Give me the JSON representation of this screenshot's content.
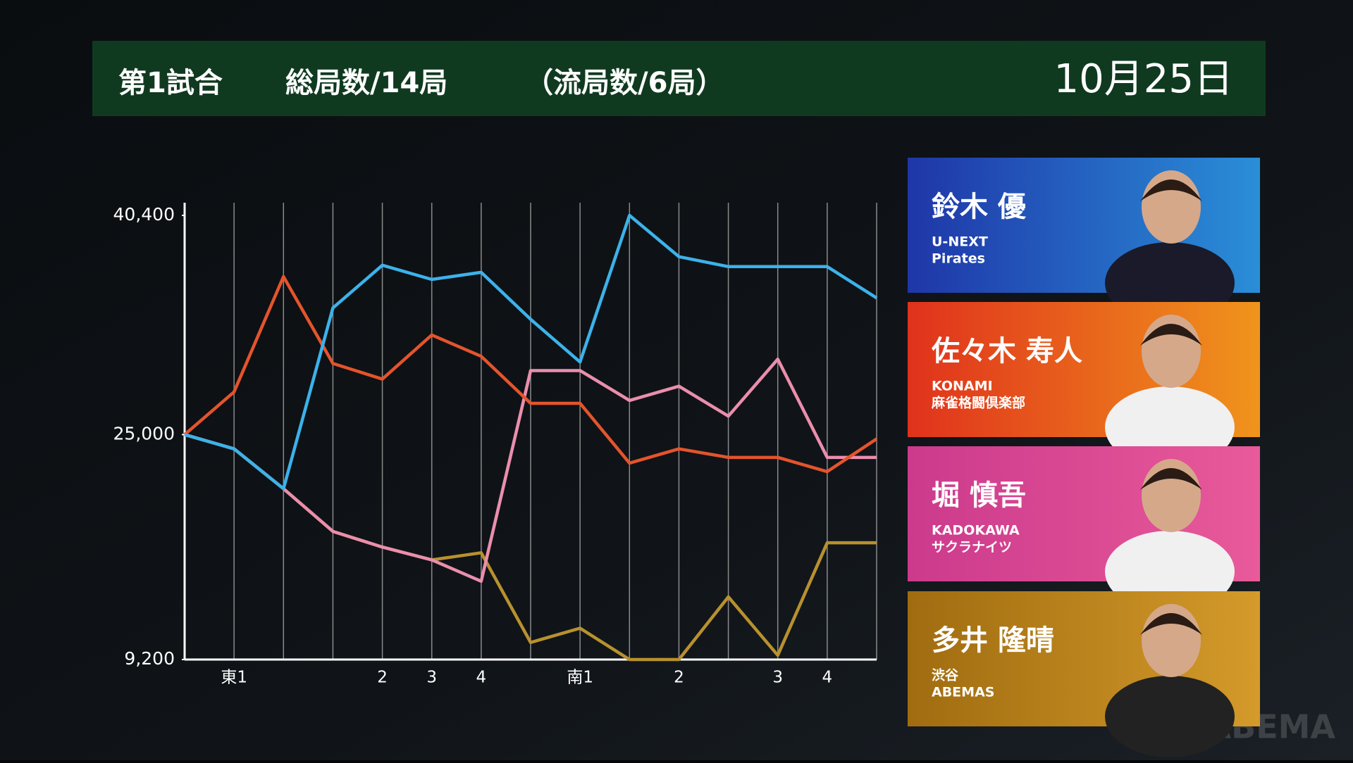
{
  "header": {
    "match": "第1試合",
    "total": "総局数/14局",
    "draws": "（流局数/6局）",
    "date": "10月25日"
  },
  "chart_data": {
    "type": "line",
    "categories": [
      null,
      "東1",
      null,
      null,
      "2",
      "3",
      "4",
      null,
      "南1",
      null,
      "2",
      null,
      "3",
      "4",
      null
    ],
    "ylim": [
      9200,
      40400
    ],
    "yticks": [
      {
        "value": 9200,
        "label": "9,200"
      },
      {
        "value": 25000,
        "label": "25,000"
      },
      {
        "value": 40400,
        "label": "40,400"
      }
    ],
    "series": [
      {
        "name": "多井 隆晴",
        "color": "#b8912e",
        "values": [
          25000,
          24000,
          21200,
          18200,
          17100,
          16200,
          16700,
          10400,
          11400,
          9200,
          9200,
          13600,
          9500,
          17400,
          17400
        ]
      },
      {
        "name": "堀 慎吾",
        "color": "#ea8eac",
        "values": [
          25000,
          24000,
          21200,
          18200,
          17100,
          16200,
          14700,
          29500,
          29500,
          27400,
          28400,
          26300,
          30300,
          23400,
          23400
        ]
      },
      {
        "name": "佐々木 寿人",
        "color": "#e4542c",
        "values": [
          25000,
          28000,
          36100,
          30000,
          28900,
          32000,
          30500,
          27200,
          27200,
          23000,
          24000,
          23400,
          23400,
          22400,
          24700
        ]
      },
      {
        "name": "鈴木 優",
        "color": "#3cb2ea",
        "values": [
          25000,
          24000,
          21200,
          33900,
          36900,
          35900,
          36400,
          33100,
          30100,
          40400,
          37500,
          36800,
          36800,
          36800,
          34600
        ]
      }
    ]
  },
  "players": [
    {
      "name": "鈴木 優",
      "team": [
        "U-NEXT",
        "Pirates"
      ]
    },
    {
      "name": "佐々木 寿人",
      "team": [
        "KONAMI",
        "麻雀格闘倶楽部"
      ]
    },
    {
      "name": "堀 慎吾",
      "team": [
        "KADOKAWA",
        "サクラナイツ"
      ]
    },
    {
      "name": "多井 隆晴",
      "team": [
        "渋谷",
        "ABEMAS"
      ]
    }
  ],
  "watermark": "ABEMA"
}
